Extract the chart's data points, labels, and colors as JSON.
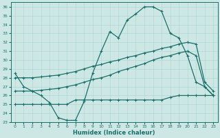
{
  "xlabel": "Humidex (Indice chaleur)",
  "xlim": [
    -0.5,
    23.5
  ],
  "ylim": [
    23,
    36.5
  ],
  "yticks": [
    23,
    24,
    25,
    26,
    27,
    28,
    29,
    30,
    31,
    32,
    33,
    34,
    35,
    36
  ],
  "xticks": [
    0,
    1,
    2,
    3,
    4,
    5,
    6,
    7,
    8,
    9,
    10,
    11,
    12,
    13,
    14,
    15,
    16,
    17,
    18,
    19,
    20,
    21,
    22,
    23
  ],
  "bg_color": "#cde8e4",
  "grid_color": "#b0d8d2",
  "line_color": "#1a6e6a",
  "line1_y": [
    28.5,
    27.0,
    26.5,
    26.0,
    25.2,
    23.5,
    23.2,
    23.2,
    25.3,
    28.5,
    31.0,
    33.2,
    32.5,
    34.5,
    35.2,
    36.0,
    36.0,
    35.5,
    33.0,
    32.5,
    30.5,
    27.5,
    27.0,
    26.0
  ],
  "line2_y": [
    28.0,
    28.0,
    28.0,
    28.1,
    28.2,
    28.3,
    28.5,
    28.7,
    29.0,
    29.3,
    29.5,
    29.8,
    30.0,
    30.3,
    30.5,
    30.8,
    31.0,
    31.3,
    31.5,
    31.8,
    32.0,
    31.8,
    27.5,
    26.5
  ],
  "line3_y": [
    26.5,
    26.5,
    26.5,
    26.6,
    26.7,
    26.8,
    27.0,
    27.2,
    27.5,
    27.8,
    28.0,
    28.3,
    28.7,
    29.0,
    29.3,
    29.6,
    30.0,
    30.3,
    30.5,
    30.8,
    31.0,
    30.5,
    27.0,
    26.0
  ],
  "line4_y": [
    25.0,
    25.0,
    25.0,
    25.0,
    25.0,
    25.0,
    25.0,
    25.5,
    25.5,
    25.5,
    25.5,
    25.5,
    25.5,
    25.5,
    25.5,
    25.5,
    25.5,
    25.5,
    25.8,
    26.0,
    26.0,
    26.0,
    26.0,
    26.0
  ]
}
